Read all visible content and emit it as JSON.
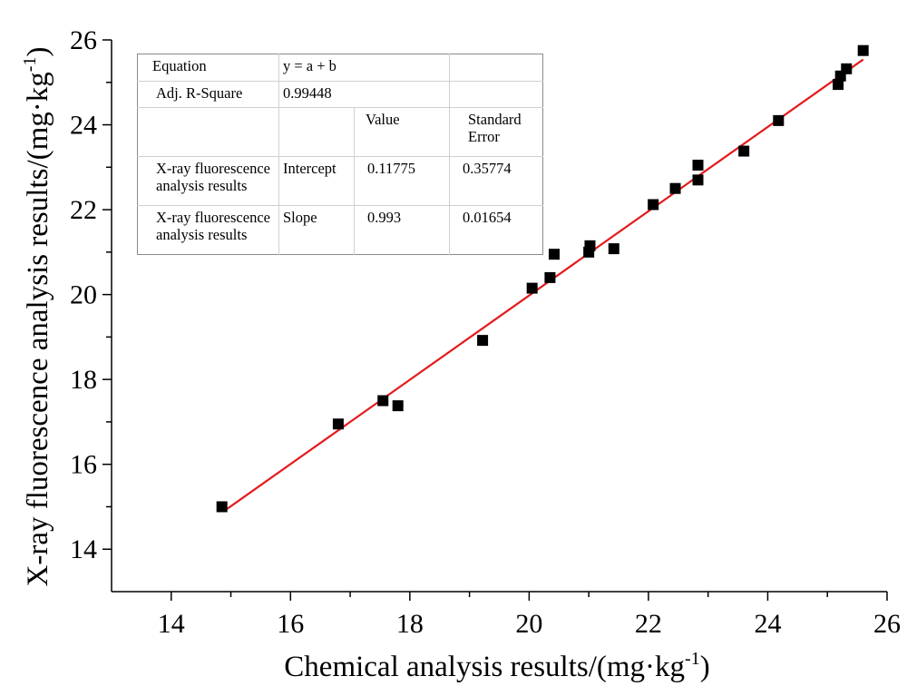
{
  "chart_data": {
    "type": "scatter",
    "xlabel": "Chemical analysis results/(mg·kg",
    "xlabel_sup": "-1",
    "xlabel_tail": ")",
    "ylabel": "X-ray fluorescence analysis results/(mg·kg",
    "ylabel_sup": "-1",
    "ylabel_tail": ")",
    "xlim": [
      13,
      26
    ],
    "ylim": [
      13,
      26
    ],
    "x_ticks": [
      14,
      16,
      18,
      20,
      22,
      24,
      26
    ],
    "y_ticks": [
      14,
      16,
      18,
      20,
      22,
      24,
      26
    ],
    "series": [
      {
        "marker": "square",
        "color": "#000000",
        "points": [
          {
            "x": 14.85,
            "y": 15.0
          },
          {
            "x": 16.8,
            "y": 16.95
          },
          {
            "x": 17.55,
            "y": 17.5
          },
          {
            "x": 17.8,
            "y": 17.38
          },
          {
            "x": 19.22,
            "y": 18.92
          },
          {
            "x": 20.05,
            "y": 20.15
          },
          {
            "x": 20.35,
            "y": 20.4
          },
          {
            "x": 20.42,
            "y": 20.95
          },
          {
            "x": 21.0,
            "y": 21.0
          },
          {
            "x": 21.02,
            "y": 21.15
          },
          {
            "x": 21.42,
            "y": 21.08
          },
          {
            "x": 22.08,
            "y": 22.12
          },
          {
            "x": 22.45,
            "y": 22.5
          },
          {
            "x": 22.83,
            "y": 22.7
          },
          {
            "x": 22.83,
            "y": 23.05
          },
          {
            "x": 23.6,
            "y": 23.38
          },
          {
            "x": 24.18,
            "y": 24.1
          },
          {
            "x": 25.18,
            "y": 24.95
          },
          {
            "x": 25.22,
            "y": 25.15
          },
          {
            "x": 25.32,
            "y": 25.32
          },
          {
            "x": 25.6,
            "y": 25.75
          }
        ]
      }
    ],
    "fit_line": {
      "intercept": 0.11775,
      "slope": 0.993,
      "x_range": [
        14.9,
        25.6
      ],
      "color": "#e31a1c"
    },
    "grid": false
  },
  "fit_table": {
    "equation_label": "Equation",
    "equation_value": "y = a + b",
    "r2_label": "Adj. R-Square",
    "r2_value": "0.99448",
    "value_header": "Value",
    "se_header": "Standard Error",
    "row1_name": "X-ray fluorescence analysis results",
    "row1_param": "Intercept",
    "row1_value": "0.11775",
    "row1_se": "0.35774",
    "row2_name": "X-ray fluorescence analysis results",
    "row2_param": "Slope",
    "row2_value": "0.993",
    "row2_se": "0.01654"
  }
}
